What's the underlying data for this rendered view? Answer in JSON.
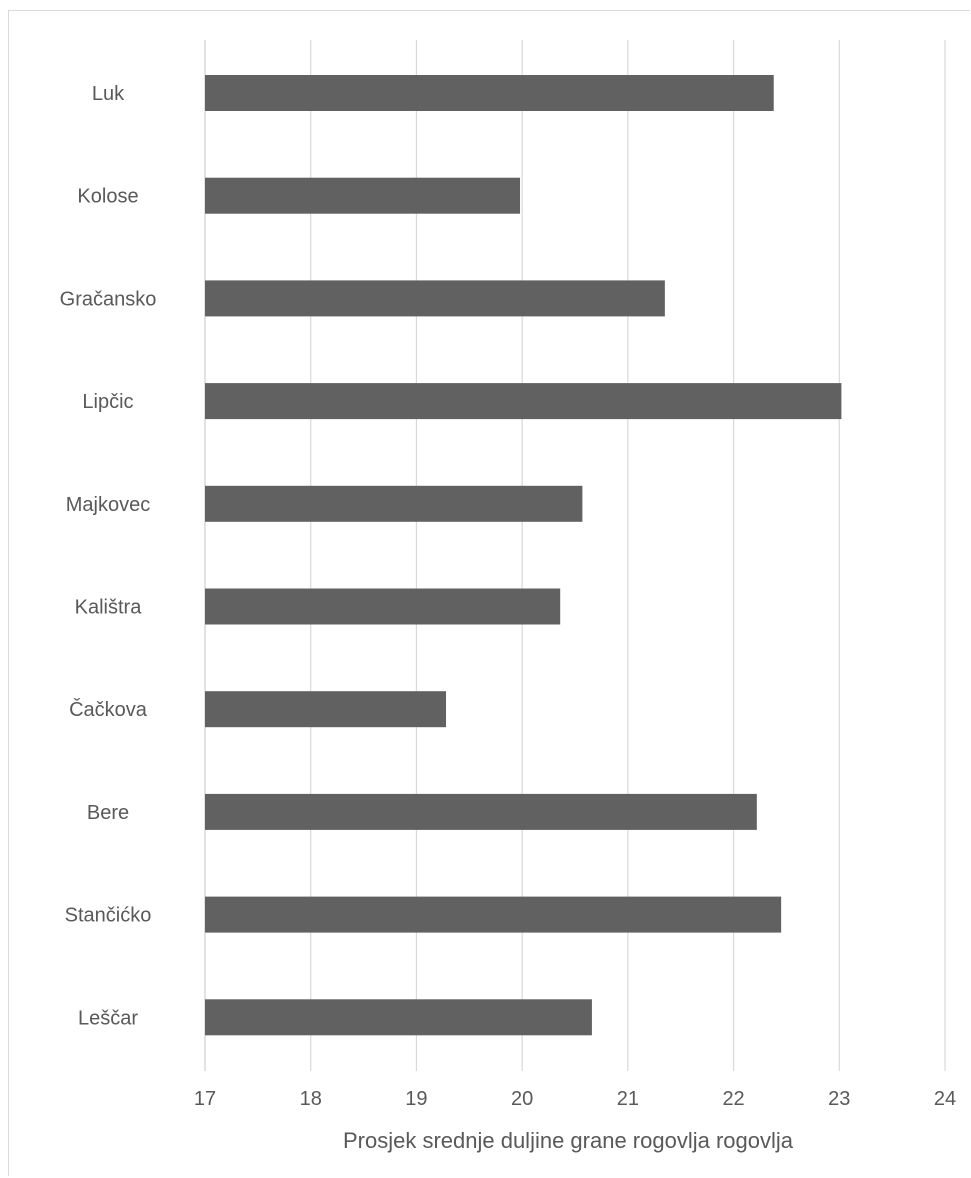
{
  "chart_data": {
    "type": "bar",
    "orientation": "horizontal",
    "categories": [
      "Luk",
      "Kolose",
      "Gračansko",
      "Lipčic",
      "Majkovec",
      "Kalištra",
      "Čačkova",
      "Bere",
      "Stančićko",
      "Leščar"
    ],
    "values": [
      22.38,
      19.98,
      21.35,
      23.02,
      20.57,
      20.36,
      19.28,
      22.22,
      22.45,
      20.66
    ],
    "title": "",
    "xlabel": "Prosjek srednje duljine grane rogovlja rogovlja",
    "ylabel": "",
    "xlim": [
      17,
      24
    ],
    "xticks": [
      "17",
      "18",
      "19",
      "20",
      "21",
      "22",
      "23",
      "24"
    ],
    "grid": "vertical",
    "legend": "none",
    "bar_color": "#616161",
    "grid_color": "#d9d9d9",
    "text_color": "#595959"
  }
}
